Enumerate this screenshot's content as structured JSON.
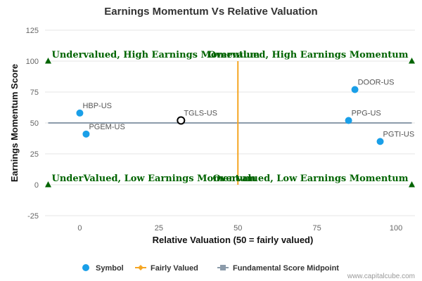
{
  "chart_data": {
    "type": "scatter",
    "title": "Earnings Momentum Vs Relative Valuation",
    "xlabel": "Relative Valuation (50 = fairly valued)",
    "ylabel": "Earnings Momentum Score",
    "xlim": [
      -11,
      106
    ],
    "ylim": [
      -25,
      125
    ],
    "xticks": [
      0,
      25,
      50,
      75,
      100
    ],
    "yticks": [
      -25,
      0,
      25,
      50,
      75,
      100,
      125
    ],
    "grid": "horizontal",
    "points": [
      {
        "label": "HBP-US",
        "x": 0,
        "y": 58,
        "highlight": false
      },
      {
        "label": "PGEM-US",
        "x": 2,
        "y": 41,
        "highlight": false
      },
      {
        "label": "TGLS-US",
        "x": 32,
        "y": 52,
        "highlight": true
      },
      {
        "label": "DOOR-US",
        "x": 87,
        "y": 77,
        "highlight": false
      },
      {
        "label": "PPG-US",
        "x": 85,
        "y": 52,
        "highlight": false
      },
      {
        "label": "PGTI-US",
        "x": 95,
        "y": 35,
        "highlight": false
      }
    ],
    "fairly_valued_x": 50,
    "midpoint_y": 50,
    "corner_markers": [
      {
        "x": -10,
        "y": 100
      },
      {
        "x": 105,
        "y": 100
      },
      {
        "x": -10,
        "y": 0
      },
      {
        "x": 105,
        "y": 0
      }
    ],
    "quadrant_labels": {
      "top_left": "Undervalued, High Earnings Momentum",
      "top_right": "Overvalued, High Earnings Momentum",
      "bottom_left": "UnderValued, Low Earnings Momentum",
      "bottom_right": "Overvalued, Low Earnings Momentum"
    },
    "legend": [
      {
        "name": "Symbol",
        "symbol": "circle",
        "color": "#1a9fe8"
      },
      {
        "name": "Fairly Valued",
        "symbol": "line-diamond",
        "color": "#f5a623"
      },
      {
        "name": "Fundamental Score Midpoint",
        "symbol": "line-square",
        "color": "#8c9baa"
      }
    ],
    "legend_position": "bottom-center",
    "credit": "www.capitalcube.com",
    "colors": {
      "point": "#1a9fe8",
      "fair_line": "#f5a623",
      "midpoint_line": "#8c9baa",
      "quadrant_text": "#006400",
      "marker": "#006400",
      "grid": "#e6e6e6"
    }
  }
}
